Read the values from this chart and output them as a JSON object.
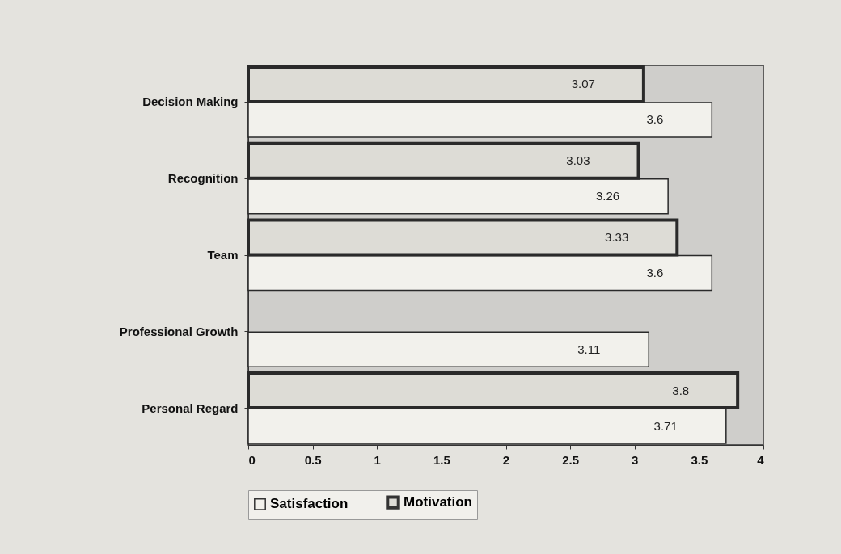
{
  "chart_data": {
    "type": "bar",
    "orientation": "horizontal",
    "categories": [
      "Decision Making",
      "Recognition",
      "Team",
      "Professional Growth",
      "Personal Regard"
    ],
    "series": [
      {
        "name": "Satisfaction",
        "color": "#f2f1ec",
        "values": [
          3.6,
          3.26,
          3.6,
          3.11,
          3.71
        ]
      },
      {
        "name": "Motivation",
        "color": "#dddcd6",
        "values": [
          3.07,
          3.03,
          3.33,
          null,
          3.8
        ]
      }
    ],
    "xlim": [
      0,
      4
    ],
    "xticks": [
      0,
      0.5,
      1,
      1.5,
      2,
      2.5,
      3,
      3.5,
      4
    ],
    "grid": false,
    "legend": "bottom",
    "data_labels": true
  }
}
